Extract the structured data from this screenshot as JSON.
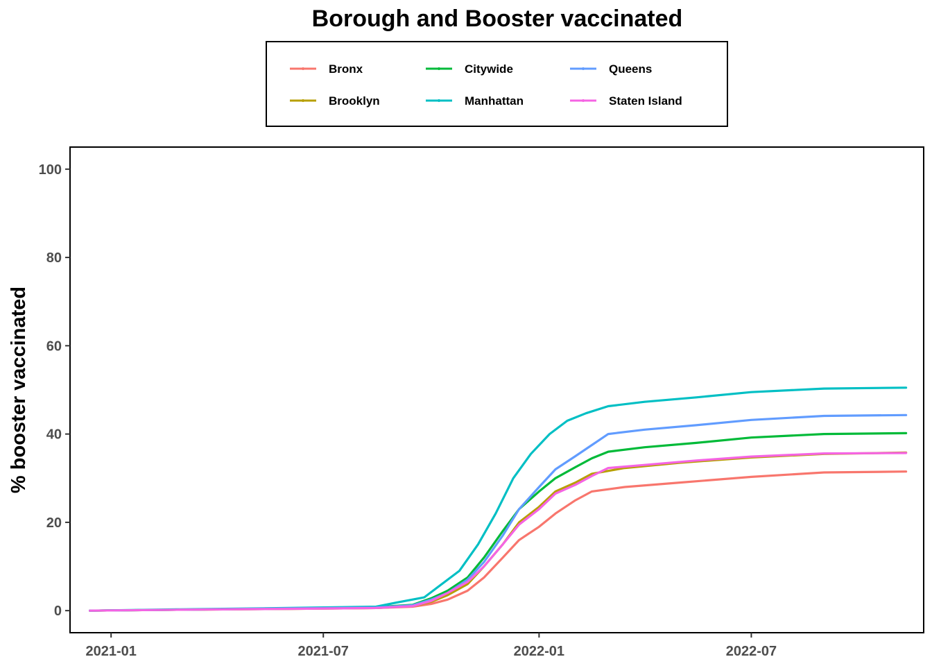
{
  "chart_data": {
    "type": "line",
    "title": "Borough and Booster vaccinated",
    "xlabel": "",
    "ylabel": "% booster vaccinated",
    "ylim": [
      -5,
      105
    ],
    "xlim": [
      "2020-11-27",
      "2022-11-25"
    ],
    "yticks": [
      0,
      20,
      40,
      60,
      80,
      100
    ],
    "xticks": [
      {
        "date": "2021-01-01",
        "label": "2021-01"
      },
      {
        "date": "2021-07-01",
        "label": "2021-07"
      },
      {
        "date": "2022-01-01",
        "label": "2022-01"
      },
      {
        "date": "2022-07-01",
        "label": "2022-07"
      }
    ],
    "grid": false,
    "legend_position": "top",
    "series": [
      {
        "name": "Bronx",
        "color": "#F8766D",
        "points": [
          [
            "2020-12-14",
            0
          ],
          [
            "2021-03-01",
            0.2
          ],
          [
            "2021-06-01",
            0.4
          ],
          [
            "2021-08-15",
            0.6
          ],
          [
            "2021-09-15",
            0.9
          ],
          [
            "2021-10-01",
            1.5
          ],
          [
            "2021-10-15",
            2.5
          ],
          [
            "2021-11-01",
            4.5
          ],
          [
            "2021-11-15",
            7.5
          ],
          [
            "2021-12-01",
            12
          ],
          [
            "2021-12-15",
            16
          ],
          [
            "2022-01-01",
            19
          ],
          [
            "2022-01-15",
            22
          ],
          [
            "2022-02-01",
            25
          ],
          [
            "2022-02-15",
            27
          ],
          [
            "2022-03-15",
            28
          ],
          [
            "2022-05-01",
            29
          ],
          [
            "2022-07-01",
            30.3
          ],
          [
            "2022-09-01",
            31.3
          ],
          [
            "2022-11-10",
            31.5
          ]
        ]
      },
      {
        "name": "Brooklyn",
        "color": "#B79F00",
        "points": [
          [
            "2020-12-14",
            0
          ],
          [
            "2021-03-01",
            0.2
          ],
          [
            "2021-06-01",
            0.4
          ],
          [
            "2021-08-15",
            0.6
          ],
          [
            "2021-09-15",
            1.0
          ],
          [
            "2021-10-01",
            2
          ],
          [
            "2021-10-15",
            3.5
          ],
          [
            "2021-11-01",
            6
          ],
          [
            "2021-11-15",
            10
          ],
          [
            "2021-12-01",
            15
          ],
          [
            "2021-12-15",
            20
          ],
          [
            "2022-01-01",
            23.5
          ],
          [
            "2022-01-15",
            27
          ],
          [
            "2022-02-01",
            29
          ],
          [
            "2022-02-15",
            31
          ],
          [
            "2022-03-15",
            32.3
          ],
          [
            "2022-05-01",
            33.5
          ],
          [
            "2022-07-01",
            34.7
          ],
          [
            "2022-09-01",
            35.5
          ],
          [
            "2022-11-10",
            35.8
          ]
        ]
      },
      {
        "name": "Citywide",
        "color": "#00BA38",
        "points": [
          [
            "2020-12-14",
            0
          ],
          [
            "2021-03-01",
            0.2
          ],
          [
            "2021-06-01",
            0.5
          ],
          [
            "2021-08-15",
            0.8
          ],
          [
            "2021-09-15",
            1.3
          ],
          [
            "2021-10-01",
            2.8
          ],
          [
            "2021-10-15",
            4.5
          ],
          [
            "2021-11-01",
            7.5
          ],
          [
            "2021-11-15",
            12
          ],
          [
            "2021-12-01",
            18
          ],
          [
            "2021-12-15",
            23
          ],
          [
            "2022-01-01",
            27
          ],
          [
            "2022-01-15",
            30
          ],
          [
            "2022-02-01",
            32.5
          ],
          [
            "2022-02-15",
            34.5
          ],
          [
            "2022-03-01",
            36
          ],
          [
            "2022-04-01",
            37
          ],
          [
            "2022-05-15",
            38
          ],
          [
            "2022-07-01",
            39.2
          ],
          [
            "2022-09-01",
            40
          ],
          [
            "2022-11-10",
            40.2
          ]
        ]
      },
      {
        "name": "Manhattan",
        "color": "#00BFC4",
        "points": [
          [
            "2020-12-14",
            0
          ],
          [
            "2021-03-01",
            0.3
          ],
          [
            "2021-06-01",
            0.6
          ],
          [
            "2021-08-15",
            0.9
          ],
          [
            "2021-09-01",
            1.8
          ],
          [
            "2021-09-25",
            3
          ],
          [
            "2021-10-10",
            6
          ],
          [
            "2021-10-25",
            9
          ],
          [
            "2021-11-10",
            15
          ],
          [
            "2021-11-25",
            22
          ],
          [
            "2021-12-10",
            30
          ],
          [
            "2021-12-25",
            35.5
          ],
          [
            "2022-01-10",
            40
          ],
          [
            "2022-01-25",
            43
          ],
          [
            "2022-02-10",
            44.7
          ],
          [
            "2022-03-01",
            46.3
          ],
          [
            "2022-04-01",
            47.3
          ],
          [
            "2022-05-15",
            48.3
          ],
          [
            "2022-07-01",
            49.5
          ],
          [
            "2022-09-01",
            50.3
          ],
          [
            "2022-11-10",
            50.5
          ]
        ]
      },
      {
        "name": "Queens",
        "color": "#619CFF",
        "points": [
          [
            "2020-12-14",
            0
          ],
          [
            "2021-03-01",
            0.2
          ],
          [
            "2021-06-01",
            0.5
          ],
          [
            "2021-08-15",
            0.7
          ],
          [
            "2021-09-15",
            1.2
          ],
          [
            "2021-10-01",
            2.5
          ],
          [
            "2021-10-15",
            4
          ],
          [
            "2021-11-01",
            7
          ],
          [
            "2021-11-15",
            11
          ],
          [
            "2021-12-01",
            17
          ],
          [
            "2021-12-15",
            23
          ],
          [
            "2022-01-01",
            28
          ],
          [
            "2022-01-15",
            32
          ],
          [
            "2022-02-01",
            35
          ],
          [
            "2022-02-15",
            37.5
          ],
          [
            "2022-03-01",
            40
          ],
          [
            "2022-04-01",
            41
          ],
          [
            "2022-05-15",
            42
          ],
          [
            "2022-07-01",
            43.2
          ],
          [
            "2022-09-01",
            44.1
          ],
          [
            "2022-11-10",
            44.3
          ]
        ]
      },
      {
        "name": "Staten Island",
        "color": "#F564E3",
        "points": [
          [
            "2020-12-14",
            0
          ],
          [
            "2021-03-01",
            0.2
          ],
          [
            "2021-06-01",
            0.4
          ],
          [
            "2021-08-15",
            0.6
          ],
          [
            "2021-09-15",
            1.0
          ],
          [
            "2021-10-01",
            2.2
          ],
          [
            "2021-10-15",
            4
          ],
          [
            "2021-11-01",
            6.5
          ],
          [
            "2021-11-15",
            10
          ],
          [
            "2021-12-01",
            15
          ],
          [
            "2021-12-15",
            19.5
          ],
          [
            "2022-01-01",
            23
          ],
          [
            "2022-01-15",
            26.5
          ],
          [
            "2022-02-01",
            28.5
          ],
          [
            "2022-02-15",
            30.5
          ],
          [
            "2022-03-01",
            32.3
          ],
          [
            "2022-04-01",
            33
          ],
          [
            "2022-05-15",
            34
          ],
          [
            "2022-07-01",
            34.9
          ],
          [
            "2022-09-01",
            35.6
          ],
          [
            "2022-11-10",
            35.7
          ]
        ]
      }
    ]
  }
}
